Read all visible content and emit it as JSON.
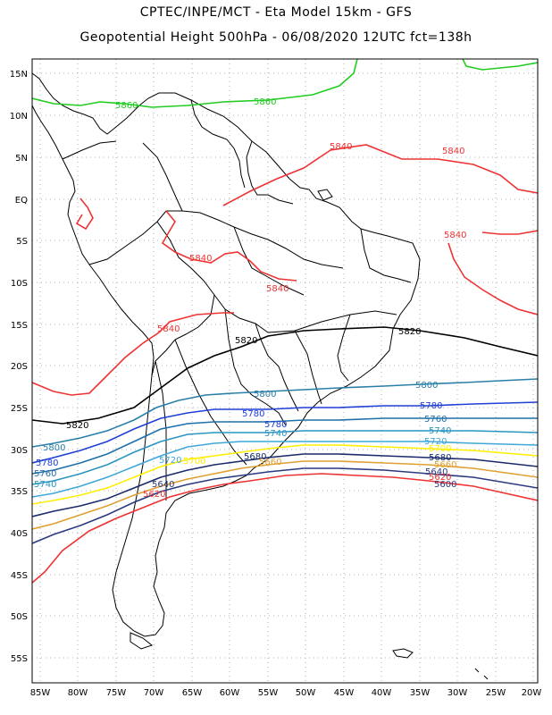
{
  "title": {
    "line1": "CPTEC/INPE/MCT -  Eta Model 15km - GFS",
    "line2": "Geopotential Height 500hPa - 06/08/2020 12UTC fct=138h"
  },
  "axes": {
    "lat_labels": [
      "15N",
      "10N",
      "5N",
      "EQ",
      "5S",
      "10S",
      "15S",
      "20S",
      "25S",
      "30S",
      "35S",
      "40S",
      "45S",
      "50S",
      "55S"
    ],
    "lon_labels": [
      "85W",
      "80W",
      "75W",
      "70W",
      "65W",
      "60W",
      "55W",
      "50W",
      "45W",
      "40W",
      "35W",
      "30W",
      "25W",
      "20W"
    ]
  },
  "colors": {
    "c5860": "#22cc22",
    "c5840": "#ee3333",
    "c5820": "#000000",
    "c5800": "#2a7fa8",
    "c5780": "#1f3fd8",
    "c5760": "#1f6fa8",
    "c5740": "#2a95c0",
    "c5720": "#3fa8d8",
    "c5700": "#ffee00",
    "c5680": "#1a2a6a",
    "c5660": "#e0a030",
    "c5640": "#2a3a80",
    "c5620": "#ee3333"
  },
  "contour_labels": [
    {
      "text": "5860",
      "color": "c5860"
    },
    {
      "text": "5860",
      "color": "c5860"
    },
    {
      "text": "5840",
      "color": "c5840"
    },
    {
      "text": "5840",
      "color": "c5840"
    },
    {
      "text": "5840",
      "color": "c5840"
    },
    {
      "text": "5840",
      "color": "c5840"
    },
    {
      "text": "5840",
      "color": "c5840"
    },
    {
      "text": "5840",
      "color": "c5840"
    },
    {
      "text": "5820",
      "color": "c5820"
    },
    {
      "text": "5820",
      "color": "c5820"
    },
    {
      "text": "5820",
      "color": "c5820"
    },
    {
      "text": "5800",
      "color": "c5800"
    },
    {
      "text": "5800",
      "color": "c5800"
    },
    {
      "text": "5800",
      "color": "c5800"
    },
    {
      "text": "5780",
      "color": "c5780"
    },
    {
      "text": "5780",
      "color": "c5780"
    },
    {
      "text": "5780",
      "color": "c5780"
    },
    {
      "text": "5780",
      "color": "c5780"
    },
    {
      "text": "5760",
      "color": "c5760"
    },
    {
      "text": "5760",
      "color": "c5760"
    },
    {
      "text": "5740",
      "color": "c5740"
    },
    {
      "text": "5740",
      "color": "c5740"
    },
    {
      "text": "5740",
      "color": "c5740"
    },
    {
      "text": "5720",
      "color": "c5720"
    },
    {
      "text": "5720",
      "color": "c5720"
    },
    {
      "text": "5700",
      "color": "c5700"
    },
    {
      "text": "5700",
      "color": "c5700"
    },
    {
      "text": "5680",
      "color": "c5680"
    },
    {
      "text": "5680",
      "color": "c5680"
    },
    {
      "text": "5660",
      "color": "c5660"
    },
    {
      "text": "5660",
      "color": "c5660"
    },
    {
      "text": "5640",
      "color": "c5640"
    },
    {
      "text": "5640",
      "color": "c5640"
    },
    {
      "text": "5620",
      "color": "c5620"
    },
    {
      "text": "5620",
      "color": "c5620"
    },
    {
      "text": "5600",
      "color": "c5640"
    }
  ]
}
